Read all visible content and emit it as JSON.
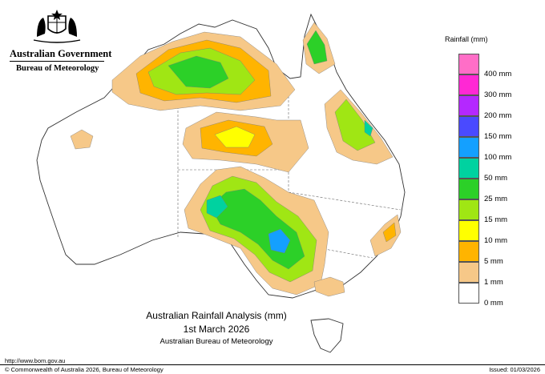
{
  "header": {
    "government": "Australian Government",
    "bureau": "Bureau of Meteorology"
  },
  "legend": {
    "title": "Rainfall (mm)",
    "items": [
      {
        "label": "",
        "color": "#ff6ec7"
      },
      {
        "label": "400 mm",
        "color": "#ff28d4"
      },
      {
        "label": "300 mm",
        "color": "#b428ff"
      },
      {
        "label": "200 mm",
        "color": "#4a4aff"
      },
      {
        "label": "150 mm",
        "color": "#14a0ff"
      },
      {
        "label": "100 mm",
        "color": "#00d2a0"
      },
      {
        "label": "50 mm",
        "color": "#2cd028"
      },
      {
        "label": "25 mm",
        "color": "#a0e614"
      },
      {
        "label": "15 mm",
        "color": "#ffff00"
      },
      {
        "label": "10 mm",
        "color": "#ffb400"
      },
      {
        "label": "5 mm",
        "color": "#f6c888"
      },
      {
        "label": "1 mm",
        "color": "#ffffff"
      },
      {
        "label": "0 mm",
        "color": null
      }
    ]
  },
  "map": {
    "title": "Australian Rainfall Analysis (mm)",
    "date": "1st March 2026",
    "agency": "Australian Bureau of Meteorology"
  },
  "footer": {
    "url": "http://www.bom.gov.au",
    "copyright": "© Commonwealth of Australia 2026, Bureau of Meteorology",
    "issued": "Issued: 01/03/2026"
  }
}
